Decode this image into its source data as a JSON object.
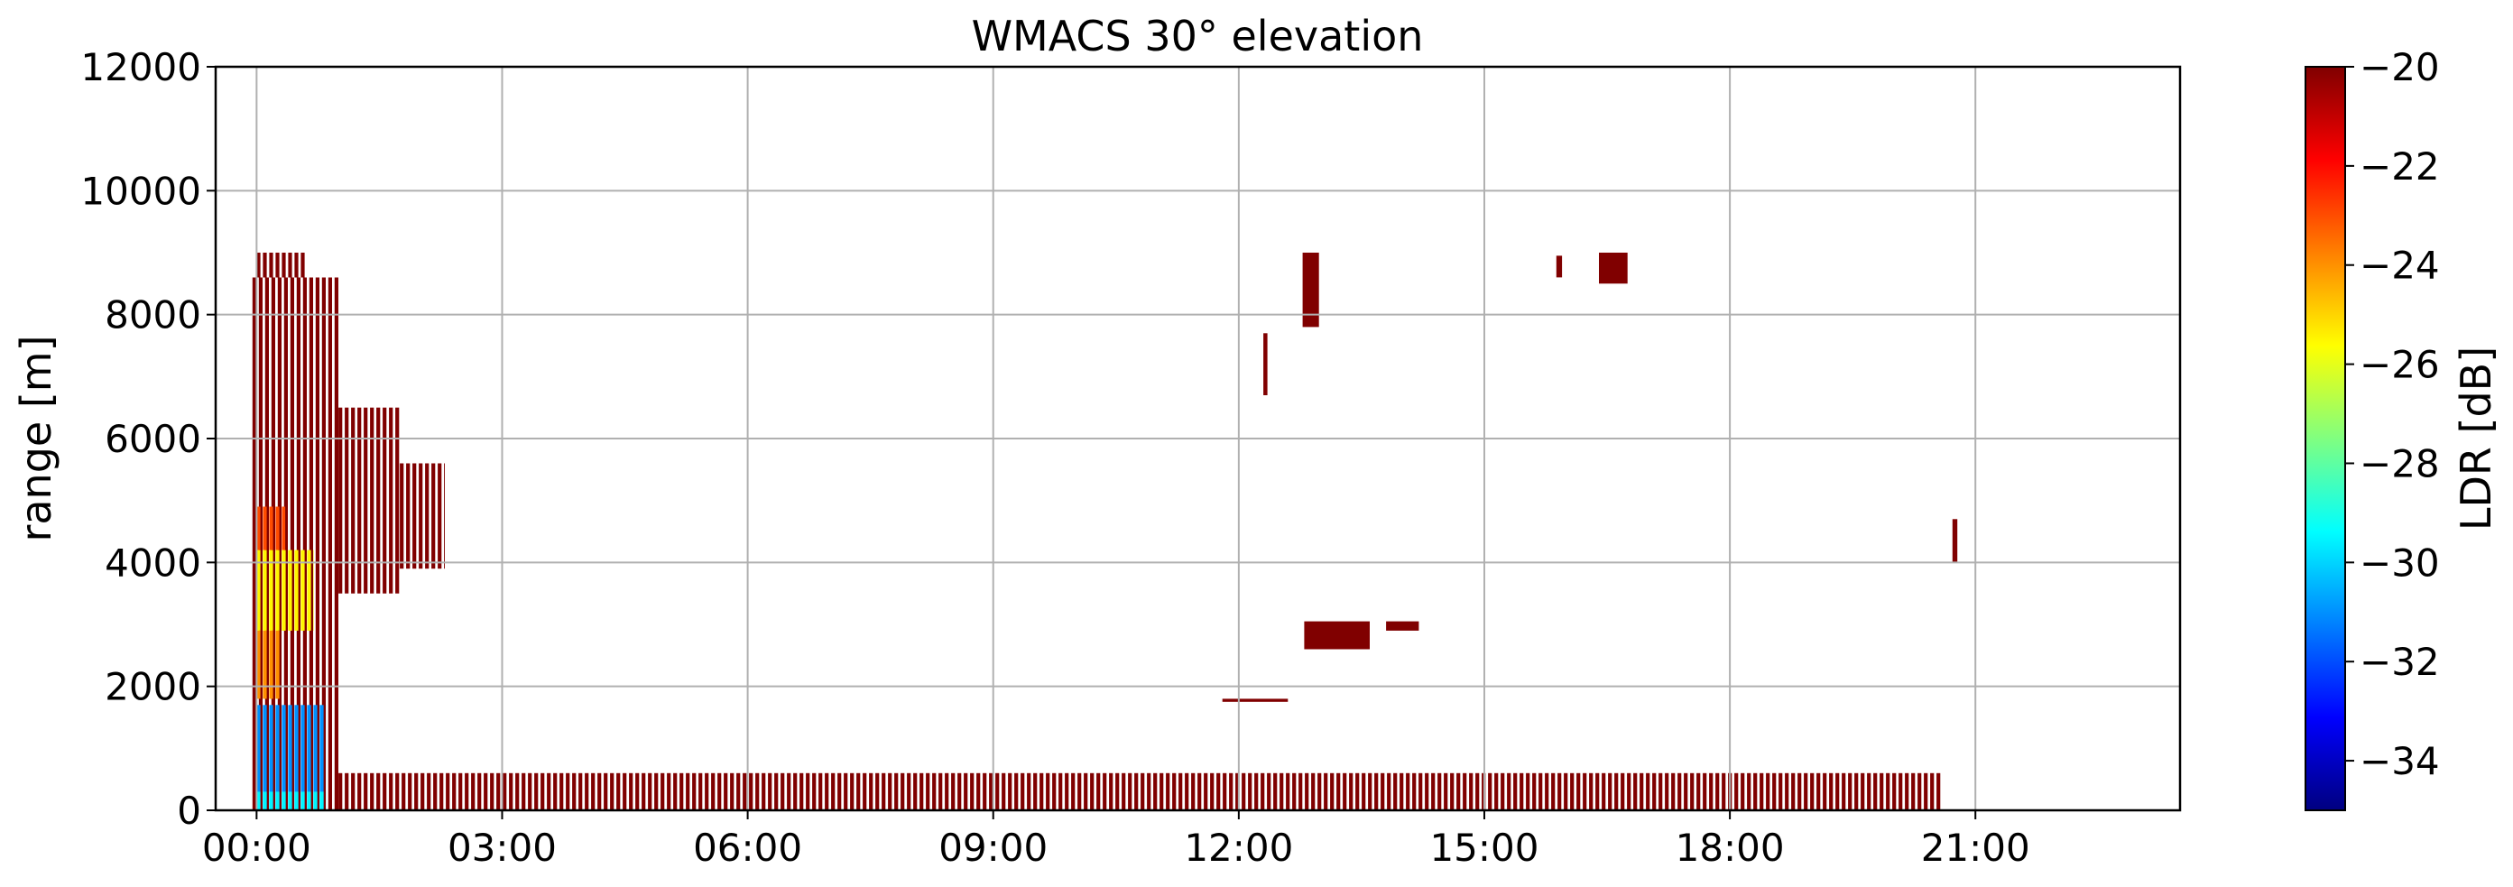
{
  "chart_data": {
    "type": "heatmap",
    "title": "WMACS 30° elevation",
    "xlabel": "",
    "ylabel": "range [m]",
    "xlim_hours": [
      -0.5,
      23.5
    ],
    "ylim": [
      0,
      12000
    ],
    "x_ticks": [
      {
        "hour": 0,
        "label": "00:00"
      },
      {
        "hour": 3,
        "label": "03:00"
      },
      {
        "hour": 6,
        "label": "06:00"
      },
      {
        "hour": 9,
        "label": "09:00"
      },
      {
        "hour": 12,
        "label": "12:00"
      },
      {
        "hour": 15,
        "label": "15:00"
      },
      {
        "hour": 18,
        "label": "18:00"
      },
      {
        "hour": 21,
        "label": "21:00"
      }
    ],
    "y_ticks": [
      {
        "value": 0,
        "label": "0"
      },
      {
        "value": 2000,
        "label": "2000"
      },
      {
        "value": 4000,
        "label": "4000"
      },
      {
        "value": 6000,
        "label": "6000"
      },
      {
        "value": 8000,
        "label": "8000"
      },
      {
        "value": 10000,
        "label": "10000"
      },
      {
        "value": 12000,
        "label": "12000"
      }
    ],
    "grid": true,
    "colorbar": {
      "label": "LDR [dB]",
      "colormap": "jet",
      "range": [
        -35,
        -20
      ],
      "ticks": [
        {
          "value": -20,
          "label": "−20"
        },
        {
          "value": -22,
          "label": "−22"
        },
        {
          "value": -24,
          "label": "−24"
        },
        {
          "value": -26,
          "label": "−26"
        },
        {
          "value": -28,
          "label": "−28"
        },
        {
          "value": -30,
          "label": "−30"
        },
        {
          "value": -32,
          "label": "−32"
        },
        {
          "value": -34,
          "label": "−34"
        }
      ]
    },
    "regions": [
      {
        "name": "early-cloud-main",
        "t_start": -0.05,
        "t_end": 1.0,
        "r_min": 0,
        "r_max": 8600,
        "ldr_db": -20,
        "striped": true
      },
      {
        "name": "early-cloud-tail",
        "t_start": 1.0,
        "t_end": 1.75,
        "r_min": 3500,
        "r_max": 6500,
        "ldr_db": -20,
        "striped": true
      },
      {
        "name": "early-cloud-fringe",
        "t_start": 1.75,
        "t_end": 2.3,
        "r_min": 3900,
        "r_max": 5600,
        "ldr_db": -20,
        "striped": true
      },
      {
        "name": "early-cloud-top",
        "t_start": 0.0,
        "t_end": 0.6,
        "r_min": 8600,
        "r_max": 9000,
        "ldr_db": -20,
        "striped": true
      },
      {
        "name": "mid-layer-yellow",
        "t_start": 0.0,
        "t_end": 0.7,
        "r_min": 2900,
        "r_max": 4200,
        "ldr_db": -25.5,
        "striped": true
      },
      {
        "name": "mid-layer-orange",
        "t_start": 0.0,
        "t_end": 0.35,
        "r_min": 4200,
        "r_max": 4900,
        "ldr_db": -23,
        "striped": true
      },
      {
        "name": "mid-layer-lower",
        "t_start": 0.0,
        "t_end": 0.3,
        "r_min": 1800,
        "r_max": 2900,
        "ldr_db": -24,
        "striped": true
      },
      {
        "name": "low-layer-blue",
        "t_start": 0.0,
        "t_end": 0.85,
        "r_min": 0,
        "r_max": 1700,
        "ldr_db": -31,
        "striped": true
      },
      {
        "name": "surface-cyan",
        "t_start": 0.0,
        "t_end": 0.85,
        "r_min": 0,
        "r_max": 300,
        "ldr_db": -29.5,
        "striped": true
      },
      {
        "name": "boundary-layer",
        "t_start": 1.0,
        "t_end": 20.6,
        "r_min": 0,
        "r_max": 600,
        "ldr_db": -20,
        "striped": true
      },
      {
        "name": "high-cloud-1230",
        "t_start": 12.78,
        "t_end": 12.98,
        "r_min": 7800,
        "r_max": 9000,
        "ldr_db": -20,
        "striped": false
      },
      {
        "name": "cloud-2900-a",
        "t_start": 12.8,
        "t_end": 13.6,
        "r_min": 2600,
        "r_max": 3050,
        "ldr_db": -20,
        "striped": false
      },
      {
        "name": "cloud-2900-b",
        "t_start": 13.8,
        "t_end": 14.2,
        "r_min": 2900,
        "r_max": 3050,
        "ldr_db": -20,
        "striped": false
      },
      {
        "name": "cloud-1750",
        "t_start": 11.8,
        "t_end": 12.6,
        "r_min": 1750,
        "r_max": 1800,
        "ldr_db": -20,
        "striped": false
      },
      {
        "name": "speck-1600",
        "t_start": 16.4,
        "t_end": 16.75,
        "r_min": 8500,
        "r_max": 9000,
        "ldr_db": -20,
        "striped": false
      },
      {
        "name": "speck-1555",
        "t_start": 15.88,
        "t_end": 15.95,
        "r_min": 8600,
        "r_max": 8950,
        "ldr_db": -20,
        "striped": false
      },
      {
        "name": "speck-2050",
        "t_start": 20.72,
        "t_end": 20.78,
        "r_min": 4000,
        "r_max": 4700,
        "ldr_db": -20,
        "striped": false
      },
      {
        "name": "speck-1210",
        "t_start": 12.3,
        "t_end": 12.35,
        "r_min": 6700,
        "r_max": 7700,
        "ldr_db": -20,
        "striped": false
      }
    ]
  }
}
